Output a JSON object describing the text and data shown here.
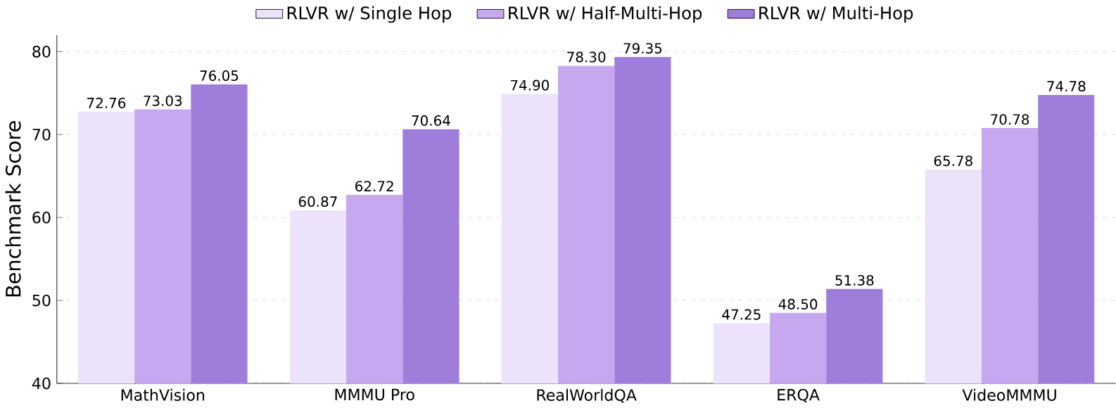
{
  "chart_data": {
    "type": "bar",
    "ylabel": "Benchmark Score",
    "categories": [
      "MathVision",
      "MMMU Pro",
      "RealWorldQA",
      "ERQA",
      "VideoMMMU"
    ],
    "ylim": [
      40,
      82
    ],
    "yticks": [
      40,
      50,
      60,
      70,
      80
    ],
    "grid": "y",
    "legend": "top",
    "series": [
      {
        "name": "RLVR w/ Single Hop",
        "color": "#ede2fb",
        "values": [
          72.76,
          60.87,
          74.9,
          47.25,
          65.78
        ],
        "value_labels": [
          "72.76",
          "60.87",
          "74.90",
          "47.25",
          "65.78"
        ]
      },
      {
        "name": "RLVR w/ Half-Multi-Hop",
        "color": "#c6a8f1",
        "values": [
          73.03,
          62.72,
          78.3,
          48.5,
          70.78
        ],
        "value_labels": [
          "73.03",
          "62.72",
          "78.30",
          "48.50",
          "70.78"
        ]
      },
      {
        "name": "RLVR w/ Multi-Hop",
        "color": "#9f7dda",
        "values": [
          76.05,
          70.64,
          79.35,
          51.38,
          74.78
        ],
        "value_labels": [
          "76.05",
          "70.64",
          "79.35",
          "51.38",
          "74.78"
        ]
      }
    ]
  }
}
